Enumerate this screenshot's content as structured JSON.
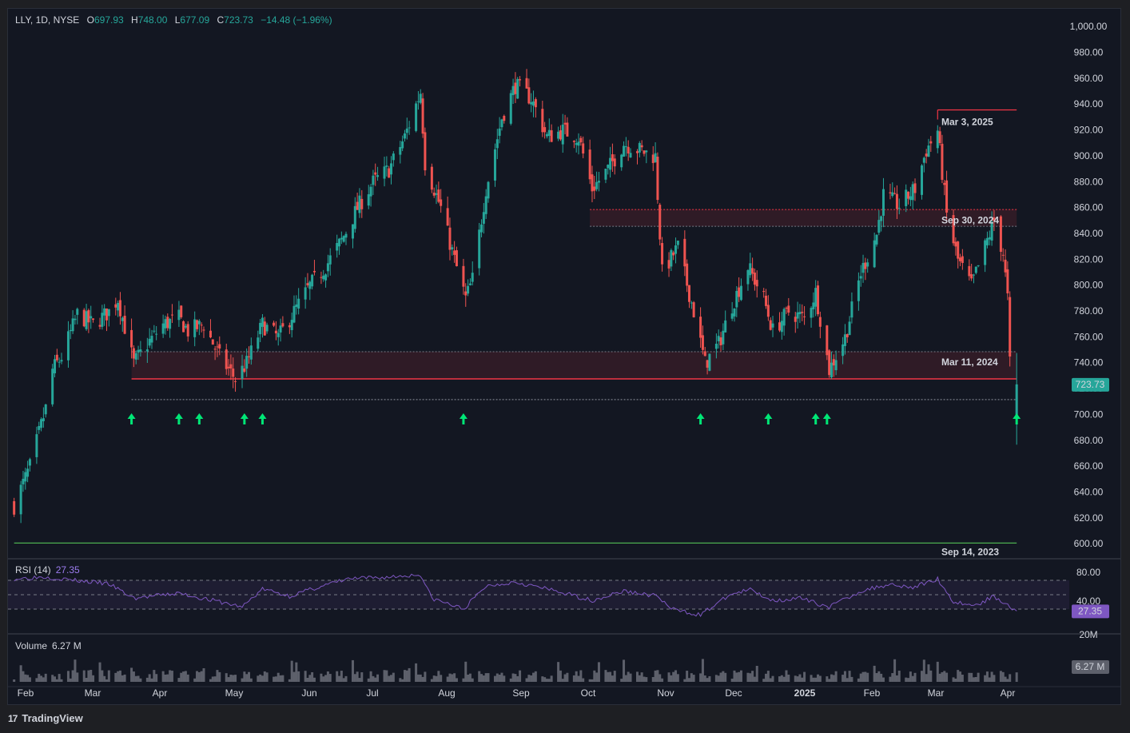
{
  "legend": {
    "symbol_line": "LLY, 1D, NYSE",
    "open_key": "O",
    "open": "697.93",
    "high_key": "H",
    "high": "748.00",
    "low_key": "L",
    "low": "677.09",
    "close_key": "C",
    "close": "723.73",
    "change": "−14.48 (−1.96%)"
  },
  "rsi": {
    "label": "RSI (14)",
    "value": "27.35"
  },
  "volume_pane": {
    "label": "Volume",
    "value": "6.27 M",
    "badge": "6.27 M",
    "axis_tick": "20M"
  },
  "footer": {
    "brand": "TradingView",
    "logo": "17"
  },
  "colors": {
    "up": "#26a69a",
    "down": "#ef5350",
    "background": "#131722",
    "zone_line": "#f23645",
    "support_line": "#4caf50",
    "rsi": "#7e57c2",
    "arrow": "#00e676"
  },
  "chart_data": {
    "type": "candlestick",
    "symbol": "LLY",
    "interval": "1D",
    "exchange": "NYSE",
    "ylim": [
      595,
      1010
    ],
    "y_ticks": [
      "1,000.00",
      "980.00",
      "960.00",
      "940.00",
      "920.00",
      "900.00",
      "880.00",
      "860.00",
      "840.00",
      "820.00",
      "800.00",
      "780.00",
      "760.00",
      "740.00",
      "720.00",
      "700.00",
      "680.00",
      "660.00",
      "640.00",
      "620.00",
      "600.00"
    ],
    "x_ticks": [
      "Feb",
      "Mar",
      "Apr",
      "May",
      "Jun",
      "Jul",
      "Aug",
      "Sep",
      "Oct",
      "Nov",
      "Dec",
      "2025",
      "Feb",
      "Mar",
      "Apr"
    ],
    "last_price": "723.73",
    "close_path": [
      [
        "2024-01-19",
        630
      ],
      [
        "2024-01-26",
        660
      ],
      [
        "2024-02-02",
        705
      ],
      [
        "2024-02-05",
        735
      ],
      [
        "2024-02-09",
        745
      ],
      [
        "2024-02-16",
        778
      ],
      [
        "2024-02-23",
        770
      ],
      [
        "2024-03-01",
        780
      ],
      [
        "2024-03-05",
        790
      ],
      [
        "2024-03-08",
        768
      ],
      [
        "2024-03-12",
        740
      ],
      [
        "2024-03-18",
        755
      ],
      [
        "2024-03-25",
        770
      ],
      [
        "2024-04-01",
        775
      ],
      [
        "2024-04-05",
        765
      ],
      [
        "2024-04-12",
        770
      ],
      [
        "2024-04-19",
        745
      ],
      [
        "2024-04-26",
        728
      ],
      [
        "2024-05-01",
        740
      ],
      [
        "2024-05-08",
        770
      ],
      [
        "2024-05-15",
        760
      ],
      [
        "2024-05-22",
        780
      ],
      [
        "2024-05-29",
        800
      ],
      [
        "2024-06-05",
        815
      ],
      [
        "2024-06-12",
        835
      ],
      [
        "2024-06-19",
        860
      ],
      [
        "2024-06-26",
        880
      ],
      [
        "2024-07-03",
        890
      ],
      [
        "2024-07-10",
        915
      ],
      [
        "2024-07-17",
        950
      ],
      [
        "2024-07-19",
        895
      ],
      [
        "2024-07-26",
        860
      ],
      [
        "2024-08-01",
        820
      ],
      [
        "2024-08-06",
        790
      ],
      [
        "2024-08-09",
        805
      ],
      [
        "2024-08-15",
        875
      ],
      [
        "2024-08-22",
        930
      ],
      [
        "2024-08-28",
        955
      ],
      [
        "2024-09-04",
        945
      ],
      [
        "2024-09-11",
        915
      ],
      [
        "2024-09-18",
        920
      ],
      [
        "2024-09-25",
        915
      ],
      [
        "2024-10-01",
        875
      ],
      [
        "2024-10-08",
        890
      ],
      [
        "2024-10-15",
        910
      ],
      [
        "2024-10-22",
        905
      ],
      [
        "2024-10-29",
        900
      ],
      [
        "2024-11-01",
        810
      ],
      [
        "2024-11-08",
        830
      ],
      [
        "2024-11-15",
        780
      ],
      [
        "2024-11-20",
        740
      ],
      [
        "2024-11-26",
        755
      ],
      [
        "2024-12-02",
        785
      ],
      [
        "2024-12-09",
        815
      ],
      [
        "2024-12-16",
        790
      ],
      [
        "2024-12-20",
        765
      ],
      [
        "2024-12-27",
        780
      ],
      [
        "2025-01-03",
        775
      ],
      [
        "2025-01-08",
        795
      ],
      [
        "2025-01-14",
        735
      ],
      [
        "2025-01-21",
        760
      ],
      [
        "2025-01-28",
        810
      ],
      [
        "2025-02-04",
        840
      ],
      [
        "2025-02-07",
        870
      ],
      [
        "2025-02-14",
        862
      ],
      [
        "2025-02-21",
        875
      ],
      [
        "2025-02-26",
        905
      ],
      [
        "2025-03-03",
        920
      ],
      [
        "2025-03-07",
        855
      ],
      [
        "2025-03-12",
        820
      ],
      [
        "2025-03-18",
        800
      ],
      [
        "2025-03-24",
        830
      ],
      [
        "2025-03-28",
        850
      ],
      [
        "2025-04-01",
        825
      ],
      [
        "2025-04-03",
        790
      ],
      [
        "2025-04-04",
        740
      ],
      [
        "2025-04-07",
        723.73
      ]
    ],
    "zones": [
      {
        "label": "Sep 30, 2024",
        "top": 859,
        "bottom": 846,
        "start": "2024-09-30",
        "end": "2025-04-07"
      },
      {
        "label": "Mar 11, 2024",
        "top": 749,
        "bottom": 728,
        "start": "2024-03-11",
        "end": "2025-04-07"
      }
    ],
    "levels": [
      {
        "label": "Mar 3, 2025",
        "value": 936,
        "start": "2025-03-03",
        "end": "2025-04-07",
        "color": "#f23645"
      },
      {
        "label": "Sep 14, 2023",
        "value": 601,
        "start": "2024-01-19",
        "end": "2025-04-07",
        "color": "#4caf50"
      },
      {
        "label": "",
        "value": 712,
        "start": "2024-03-11",
        "end": "2025-04-07",
        "color": "#787b86",
        "style": "dotted"
      }
    ],
    "signal_arrows": [
      "2024-03-11",
      "2024-04-01",
      "2024-04-10",
      "2024-04-30",
      "2024-05-08",
      "2024-08-05",
      "2024-11-18",
      "2024-12-18",
      "2025-01-08",
      "2025-01-13",
      "2025-04-07"
    ],
    "rsi": {
      "period": 14,
      "last": 27.35,
      "upper": 70,
      "middle": 50,
      "lower": 30,
      "axis_ticks": [
        "80.00",
        "40.00"
      ],
      "path": [
        [
          "2024-01-19",
          72
        ],
        [
          "2024-02-01",
          75
        ],
        [
          "2024-02-15",
          70
        ],
        [
          "2024-03-01",
          65
        ],
        [
          "2024-03-12",
          45
        ],
        [
          "2024-04-01",
          52
        ],
        [
          "2024-04-19",
          40
        ],
        [
          "2024-04-29",
          33
        ],
        [
          "2024-05-08",
          58
        ],
        [
          "2024-05-20",
          48
        ],
        [
          "2024-06-01",
          60
        ],
        [
          "2024-06-15",
          72
        ],
        [
          "2024-07-01",
          74
        ],
        [
          "2024-07-17",
          78
        ],
        [
          "2024-07-22",
          45
        ],
        [
          "2024-08-05",
          30
        ],
        [
          "2024-08-15",
          62
        ],
        [
          "2024-08-28",
          68
        ],
        [
          "2024-09-15",
          55
        ],
        [
          "2024-10-01",
          42
        ],
        [
          "2024-10-15",
          55
        ],
        [
          "2024-10-30",
          48
        ],
        [
          "2024-11-05",
          30
        ],
        [
          "2024-11-18",
          22
        ],
        [
          "2024-12-01",
          50
        ],
        [
          "2024-12-10",
          57
        ],
        [
          "2024-12-20",
          42
        ],
        [
          "2025-01-01",
          45
        ],
        [
          "2025-01-14",
          33
        ],
        [
          "2025-01-28",
          55
        ],
        [
          "2025-02-10",
          65
        ],
        [
          "2025-02-20",
          60
        ],
        [
          "2025-03-03",
          72
        ],
        [
          "2025-03-10",
          40
        ],
        [
          "2025-03-20",
          35
        ],
        [
          "2025-03-28",
          48
        ],
        [
          "2025-04-03",
          36
        ],
        [
          "2025-04-07",
          27.35
        ]
      ]
    }
  }
}
